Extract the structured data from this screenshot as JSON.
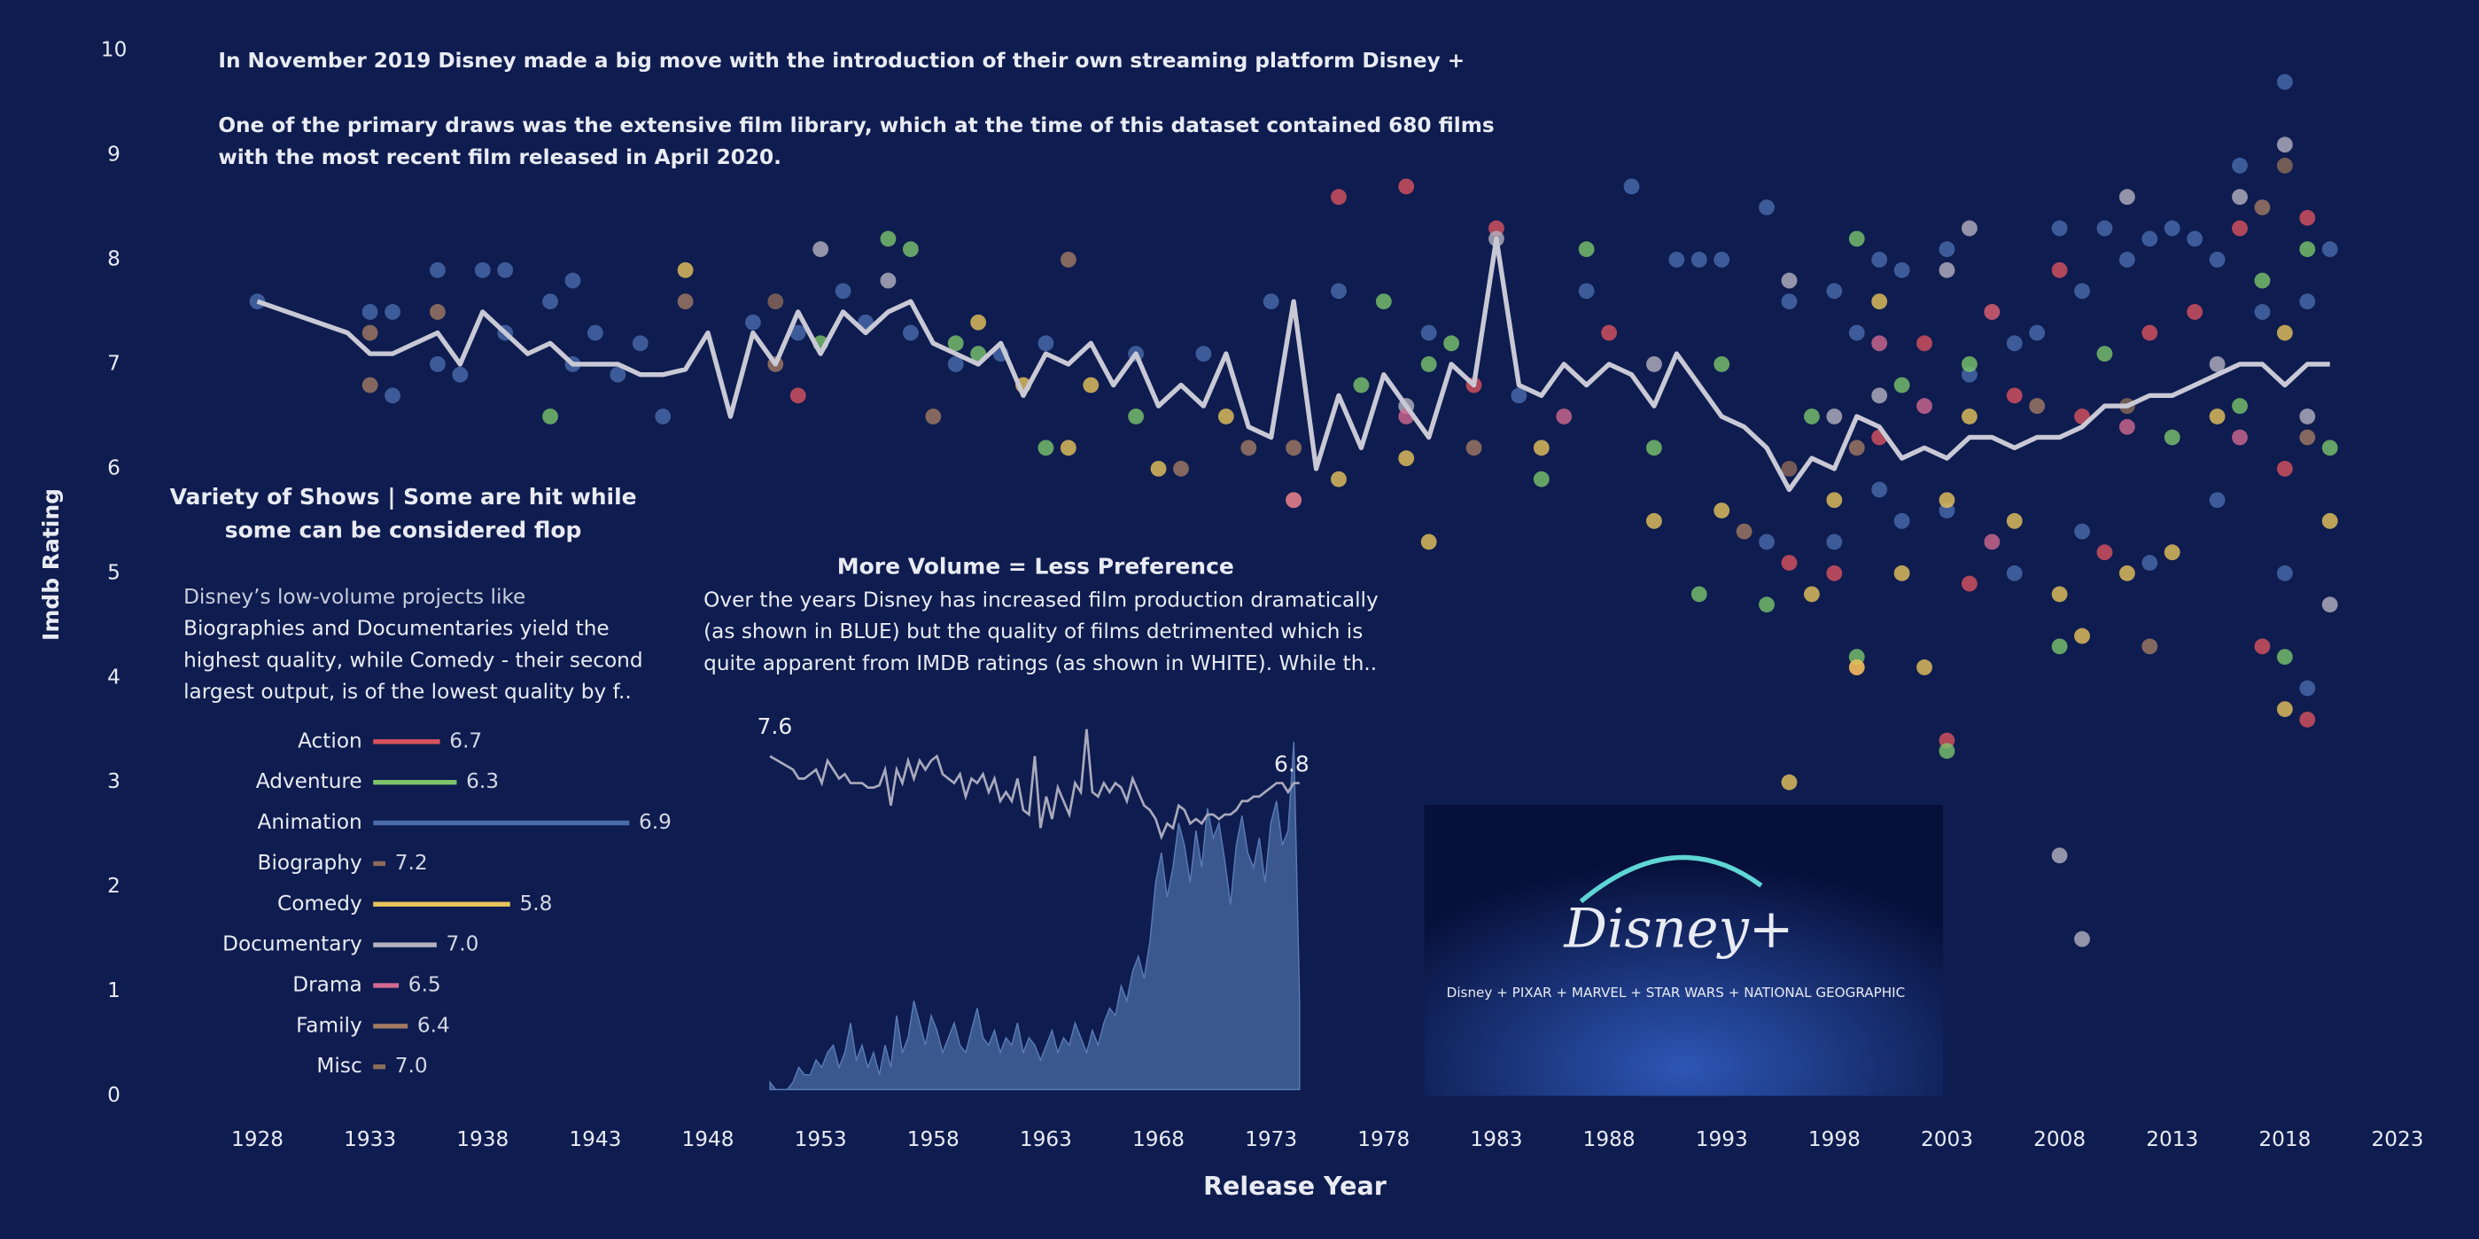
{
  "chart_data": [
    {
      "type": "scatter",
      "annotations": [
        "In November 2019 Disney made a big move with the introduction of their own streaming platform Disney +",
        "One of the primary draws was the extensive film library, which at the time of this dataset contained 680 films",
        "with the most recent film released in April 2020."
      ],
      "xlabel": "Release Year",
      "ylabel": "Imdb Rating",
      "xlim": [
        1925,
        2025
      ],
      "ylim": [
        0,
        10
      ],
      "xticks": [
        1928,
        1933,
        1938,
        1943,
        1948,
        1953,
        1958,
        1963,
        1968,
        1973,
        1978,
        1983,
        1988,
        1993,
        1998,
        2003,
        2008,
        2013,
        2018,
        2023
      ],
      "yticks": [
        0,
        1,
        2,
        3,
        4,
        5,
        6,
        7,
        8,
        9,
        10
      ],
      "series": [
        {
          "color": "#4a6cab",
          "x": [
            1928,
            1933,
            1934,
            1934,
            1936,
            1936,
            1937,
            1938,
            1939,
            1939,
            1941,
            1942,
            1942,
            1943,
            1944,
            1945,
            1946,
            1950,
            1952,
            1954,
            1955,
            1957,
            1959,
            1961,
            1963,
            1967,
            1970,
            1973,
            1976,
            1980,
            1984,
            1987,
            1989,
            1991,
            1992,
            1993,
            1995,
            1996,
            1998,
            1999,
            2000,
            2001,
            2003,
            2004,
            2005,
            2006,
            2007,
            2008,
            2009,
            2010,
            2011,
            2012,
            2013,
            2014,
            2015,
            2016,
            2017,
            2018,
            2019,
            2020,
            1998,
            2000,
            2003,
            2006,
            2009,
            2012,
            2015,
            2018,
            2019,
            1995,
            2001
          ],
          "y": [
            7.6,
            7.5,
            7.5,
            6.7,
            7.9,
            7.0,
            6.9,
            7.9,
            7.9,
            7.3,
            7.6,
            7.8,
            7.0,
            7.3,
            6.9,
            7.2,
            6.5,
            7.4,
            7.3,
            7.7,
            7.4,
            7.3,
            7.0,
            7.1,
            7.2,
            7.1,
            7.1,
            7.6,
            7.7,
            7.3,
            6.7,
            7.7,
            8.7,
            8.0,
            8.0,
            8.0,
            8.5,
            7.6,
            7.7,
            7.3,
            8.0,
            7.9,
            8.1,
            6.9,
            7.5,
            7.2,
            7.3,
            8.3,
            7.7,
            8.3,
            8.0,
            8.2,
            8.3,
            8.2,
            8.0,
            8.9,
            7.5,
            9.7,
            7.6,
            8.1,
            5.3,
            5.8,
            5.6,
            5.0,
            5.4,
            5.1,
            5.7,
            5.0,
            3.9,
            5.3,
            5.5
          ]
        },
        {
          "color": "#d9535e",
          "x": [
            1952,
            1976,
            1979,
            1982,
            1983,
            1988,
            1996,
            1998,
            1999,
            2000,
            2002,
            2003,
            2005,
            2008,
            2009,
            2010,
            2012,
            2014,
            2016,
            2017,
            2019,
            2019,
            2018,
            2006,
            2004
          ],
          "y": [
            6.7,
            8.6,
            8.7,
            6.8,
            8.3,
            7.3,
            5.1,
            5.0,
            4.1,
            6.3,
            7.2,
            3.4,
            7.5,
            7.9,
            6.5,
            5.2,
            7.3,
            7.5,
            8.3,
            4.3,
            8.4,
            3.6,
            6.0,
            6.7,
            4.9
          ]
        },
        {
          "color": "#7cc46b",
          "x": [
            1941,
            1953,
            1956,
            1957,
            1959,
            1960,
            1963,
            1967,
            1977,
            1978,
            1980,
            1981,
            1985,
            1987,
            1990,
            1993,
            1992,
            1995,
            1997,
            1999,
            1999,
            2001,
            2003,
            2004,
            2008,
            2010,
            2013,
            2016,
            2017,
            2018,
            2019,
            2020
          ],
          "y": [
            6.5,
            7.2,
            8.2,
            8.1,
            7.2,
            7.1,
            6.2,
            6.5,
            6.8,
            7.6,
            7.0,
            7.2,
            5.9,
            8.1,
            6.2,
            7.0,
            4.8,
            4.7,
            6.5,
            8.2,
            4.2,
            6.8,
            3.3,
            7.0,
            4.3,
            7.1,
            6.3,
            6.6,
            7.8,
            4.2,
            8.1,
            6.2
          ]
        },
        {
          "color": "#e8c45a",
          "x": [
            1947,
            1960,
            1962,
            1964,
            1965,
            1968,
            1971,
            1974,
            1976,
            1979,
            1980,
            1985,
            1990,
            1993,
            1996,
            1998,
            1999,
            2000,
            2001,
            2002,
            2004,
            2006,
            2008,
            2009,
            2011,
            2013,
            2015,
            2018,
            2018,
            2020,
            1997,
            2003
          ],
          "y": [
            7.9,
            7.4,
            6.8,
            6.2,
            6.8,
            6.0,
            6.5,
            5.7,
            5.9,
            6.1,
            5.3,
            6.2,
            5.5,
            5.6,
            3.0,
            5.7,
            4.1,
            7.6,
            5.0,
            4.1,
            6.5,
            5.5,
            4.8,
            4.4,
            5.0,
            5.2,
            6.5,
            3.7,
            7.3,
            5.5,
            4.8,
            5.7
          ]
        },
        {
          "color": "#b5b2bf",
          "x": [
            1953,
            1956,
            1979,
            1983,
            1990,
            1996,
            1998,
            2000,
            2003,
            2004,
            2008,
            2009,
            2011,
            2015,
            2016,
            2018,
            2019,
            2020
          ],
          "y": [
            8.1,
            7.8,
            6.6,
            8.2,
            7.0,
            7.8,
            6.5,
            6.7,
            7.9,
            8.3,
            2.3,
            1.5,
            8.6,
            7.0,
            8.6,
            9.1,
            6.5,
            4.7
          ]
        },
        {
          "color": "#d1698f",
          "x": [
            1974,
            1979,
            1986,
            2000,
            2002,
            2005,
            2011,
            2016
          ],
          "y": [
            5.7,
            6.5,
            6.5,
            7.2,
            6.6,
            5.3,
            6.4,
            6.3
          ]
        },
        {
          "color": "#a27b63",
          "x": [
            1933,
            1933,
            1936,
            1947,
            1951,
            1958,
            1964,
            1969,
            1972,
            1974,
            1982,
            1994,
            1999,
            2007,
            2012,
            2019,
            2017
          ],
          "y": [
            6.8,
            7.3,
            7.5,
            7.6,
            7.0,
            6.5,
            8.0,
            6.0,
            6.2,
            6.2,
            6.2,
            5.4,
            6.2,
            6.6,
            4.3,
            6.3,
            8.5
          ]
        },
        {
          "color": "#8e6a58",
          "x": [
            1951,
            1996
          ],
          "y": [
            7.6,
            6.0
          ]
        },
        {
          "color": "#8c6d58",
          "x": [
            2011,
            2018
          ],
          "y": [
            6.6,
            8.9
          ]
        }
      ],
      "trend": {
        "color": "#c9c9d6",
        "x": [
          1928,
          1932,
          1933,
          1934,
          1935,
          1936,
          1937,
          1938,
          1939,
          1940,
          1941,
          1942,
          1943,
          1944,
          1945,
          1946,
          1947,
          1948,
          1949,
          1950,
          1951,
          1952,
          1953,
          1954,
          1955,
          1956,
          1957,
          1958,
          1959,
          1960,
          1961,
          1962,
          1963,
          1964,
          1965,
          1966,
          1967,
          1968,
          1969,
          1970,
          1971,
          1972,
          1973,
          1974,
          1975,
          1976,
          1977,
          1978,
          1979,
          1980,
          1981,
          1982,
          1983,
          1984,
          1985,
          1986,
          1987,
          1988,
          1989,
          1990,
          1991,
          1992,
          1993,
          1994,
          1995,
          1996,
          1997,
          1998,
          1999,
          2000,
          2001,
          2002,
          2003,
          2004,
          2005,
          2006,
          2007,
          2008,
          2009,
          2010,
          2011,
          2012,
          2013,
          2014,
          2015,
          2016,
          2017,
          2018,
          2019,
          2020
        ],
        "values": [
          7.6,
          7.3,
          7.1,
          7.1,
          7.2,
          7.3,
          7.0,
          7.5,
          7.3,
          7.1,
          7.2,
          7.0,
          7.0,
          7.0,
          6.9,
          6.9,
          6.95,
          7.3,
          6.5,
          7.3,
          7.0,
          7.5,
          7.1,
          7.5,
          7.3,
          7.5,
          7.6,
          7.2,
          7.1,
          7.0,
          7.2,
          6.7,
          7.1,
          7.0,
          7.2,
          6.8,
          7.1,
          6.6,
          6.8,
          6.6,
          7.1,
          6.4,
          6.3,
          7.6,
          6.0,
          6.7,
          6.2,
          6.9,
          6.6,
          6.3,
          7.0,
          6.8,
          8.2,
          6.8,
          6.7,
          7.0,
          6.8,
          7.0,
          6.9,
          6.6,
          7.1,
          6.8,
          6.5,
          6.4,
          6.2,
          5.8,
          6.1,
          6.0,
          6.5,
          6.4,
          6.1,
          6.2,
          6.1,
          6.3,
          6.3,
          6.2,
          6.3,
          6.3,
          6.4,
          6.6,
          6.6,
          6.7,
          6.7,
          6.8,
          6.9,
          7.0,
          7.0,
          6.8,
          7.0,
          7.0
        ]
      }
    },
    {
      "type": "bar",
      "orientation": "horizontal",
      "title": [
        "Variety of Shows |  Some are hit while",
        "some can be considered flop"
      ],
      "description": [
        "Disney’s low-volume projects like",
        "Biographies and Documentaries yield the",
        "highest quality, while Comedy - their second",
        "largest output, is of the lowest quality by f.."
      ],
      "categories": [
        "Action",
        "Adventure",
        "Animation",
        "Biography",
        "Comedy",
        "Documentary",
        "Drama",
        "Family",
        "Misc"
      ],
      "values": [
        60,
        75,
        230,
        11,
        123,
        57,
        23,
        31,
        11
      ],
      "rating_labels": [
        "6.7",
        "6.3",
        "6.9",
        "7.2",
        "5.8",
        "7.0",
        "6.5",
        "6.4",
        "7.0"
      ],
      "colors": [
        "#d9535e",
        "#7cc46b",
        "#4a6cab",
        "#8e6a58",
        "#e8c45a",
        "#b5b2bf",
        "#d1698f",
        "#a27b63",
        "#8c6d58"
      ]
    },
    {
      "type": "area",
      "title": "More Volume  =  Less Preference",
      "description": [
        "Over the years Disney has increased film production dramatically",
        "(as shown in BLUE) but the quality of films detrimented which is",
        "quite apparent from IMDB ratings (as shown in WHITE). While th.."
      ],
      "color": "#3f5f95",
      "line_color": "#a9a9bd",
      "xlim": [
        1928,
        2020
      ],
      "ylim": [
        0,
        50
      ],
      "y2lim": [
        5,
        10
      ],
      "first_label": 7.6,
      "last_label": 6.8,
      "x": [
        1928,
        1929,
        1930,
        1931,
        1932,
        1933,
        1934,
        1935,
        1936,
        1937,
        1938,
        1939,
        1940,
        1941,
        1942,
        1943,
        1944,
        1945,
        1946,
        1947,
        1948,
        1949,
        1950,
        1951,
        1952,
        1953,
        1954,
        1955,
        1956,
        1957,
        1958,
        1959,
        1960,
        1961,
        1962,
        1963,
        1964,
        1965,
        1966,
        1967,
        1968,
        1969,
        1970,
        1971,
        1972,
        1973,
        1974,
        1975,
        1976,
        1977,
        1978,
        1979,
        1980,
        1981,
        1982,
        1983,
        1984,
        1985,
        1986,
        1987,
        1988,
        1989,
        1990,
        1991,
        1992,
        1993,
        1994,
        1995,
        1996,
        1997,
        1998,
        1999,
        2000,
        2001,
        2002,
        2003,
        2004,
        2005,
        2006,
        2007,
        2008,
        2009,
        2010,
        2011,
        2012,
        2013,
        2014,
        2015,
        2016,
        2017,
        2018,
        2019,
        2020
      ],
      "values": [
        1,
        0,
        0,
        0,
        1,
        3,
        2,
        2,
        4,
        3,
        5,
        6,
        3,
        5,
        9,
        4,
        6,
        3,
        5,
        2,
        6,
        3,
        10,
        5,
        7,
        12,
        9,
        6,
        10,
        8,
        5,
        7,
        9,
        6,
        5,
        8,
        11,
        7,
        6,
        8,
        5,
        7,
        6,
        9,
        5,
        7,
        6,
        4,
        6,
        8,
        5,
        7,
        6,
        9,
        7,
        5,
        8,
        6,
        9,
        11,
        10,
        14,
        12,
        16,
        18,
        15,
        20,
        28,
        32,
        26,
        30,
        36,
        33,
        28,
        35,
        30,
        38,
        34,
        36,
        31,
        25,
        33,
        37,
        32,
        30,
        34,
        28,
        36,
        39,
        33,
        35,
        47,
        12
      ]
    }
  ],
  "logo": {
    "title": "Disney+",
    "brands": "Disney + PIXAR + MARVEL + STAR WARS + NATIONAL GEOGRAPHIC"
  }
}
